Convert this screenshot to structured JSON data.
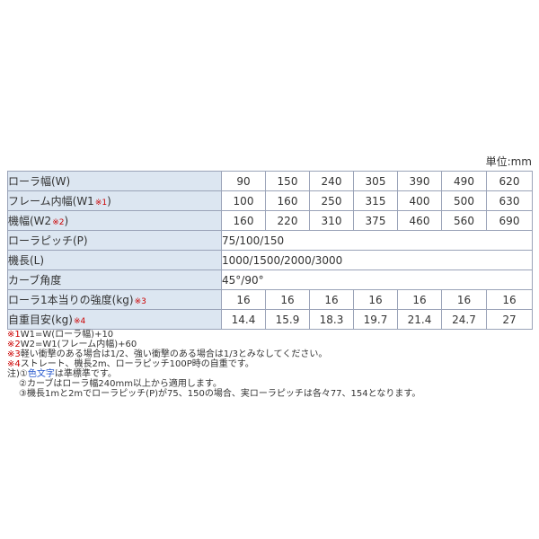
{
  "unit_label": "単位:mm",
  "colors": {
    "label_bg": "#dce6f1",
    "border": "#9aa3b8",
    "note_red": "#cc0000",
    "note_blue": "#2255cc",
    "text": "#333333"
  },
  "table": {
    "rows": [
      {
        "label": "ローラ幅(W)",
        "ref": "",
        "suffix": "",
        "values": [
          "90",
          "150",
          "240",
          "305",
          "390",
          "490",
          "620"
        ]
      },
      {
        "label": "フレーム内幅(W1",
        "ref": "※1",
        "suffix": ")",
        "values": [
          "100",
          "160",
          "250",
          "315",
          "400",
          "500",
          "630"
        ]
      },
      {
        "label": "機幅(W2",
        "ref": "※2",
        "suffix": ")",
        "values": [
          "160",
          "220",
          "310",
          "375",
          "460",
          "560",
          "690"
        ]
      },
      {
        "label": "ローラピッチ(P)",
        "ref": "",
        "suffix": "",
        "span_value": "75/100/150"
      },
      {
        "label": "機長(L)",
        "ref": "",
        "suffix": "",
        "span_value": "1000/1500/2000/3000"
      },
      {
        "label": "カーブ角度",
        "ref": "",
        "suffix": "",
        "span_value": "45°/90°"
      },
      {
        "label": "ローラ1本当りの強度(kg)",
        "ref": "※3",
        "suffix": "",
        "values": [
          "16",
          "16",
          "16",
          "16",
          "16",
          "16",
          "16"
        ]
      },
      {
        "label": "自重目安(kg)",
        "ref": "※4",
        "suffix": "",
        "values": [
          "14.4",
          "15.9",
          "18.3",
          "19.7",
          "21.4",
          "24.7",
          "27"
        ]
      }
    ]
  },
  "notes": [
    {
      "indent": false,
      "parts": [
        {
          "t": "※1",
          "c": "red"
        },
        {
          "t": "W1=W(ローラ幅)+10",
          "c": ""
        }
      ]
    },
    {
      "indent": false,
      "parts": [
        {
          "t": "※2",
          "c": "red"
        },
        {
          "t": "W2=W1(フレーム内幅)+60",
          "c": ""
        }
      ]
    },
    {
      "indent": false,
      "parts": [
        {
          "t": "※3",
          "c": "red"
        },
        {
          "t": "軽い衝撃のある場合は1/2、強い衝撃のある場合は1/3とみなしてください。",
          "c": ""
        }
      ]
    },
    {
      "indent": false,
      "parts": [
        {
          "t": "※4",
          "c": "red"
        },
        {
          "t": "ストレート、機長2m、ローラピッチ100P時の自重です。",
          "c": ""
        }
      ]
    },
    {
      "indent": false,
      "parts": [
        {
          "t": "注)①",
          "c": ""
        },
        {
          "t": "色文字",
          "c": "blue"
        },
        {
          "t": "は準標準です。",
          "c": ""
        }
      ]
    },
    {
      "indent": true,
      "parts": [
        {
          "t": "②カーブはローラ幅240mm以上から適用します。",
          "c": ""
        }
      ]
    },
    {
      "indent": true,
      "parts": [
        {
          "t": "③機長1mと2mでローラピッチ(P)が75、150の場合、実ローラピッチは各々77、154となります。",
          "c": ""
        }
      ]
    }
  ]
}
